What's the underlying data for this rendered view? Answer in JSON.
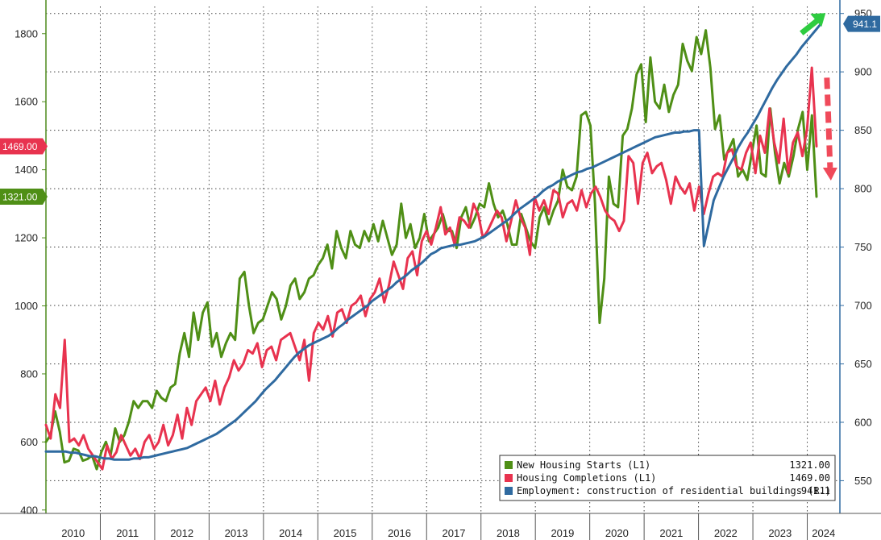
{
  "chart_data": {
    "type": "line",
    "x_start_year": 2010,
    "x_end_year": 2024.6,
    "x_tick_labels": [
      "2010",
      "2011",
      "2012",
      "2013",
      "2014",
      "2015",
      "2016",
      "2017",
      "2018",
      "2019",
      "2020",
      "2021",
      "2022",
      "2023",
      "2024"
    ],
    "left_axis": {
      "range": [
        390,
        1880
      ],
      "ticks": [
        "400",
        "600",
        "800",
        "1000",
        "1200",
        "1400",
        "1600",
        "1800"
      ],
      "color": "#4d8a1b"
    },
    "right_axis": {
      "range": [
        522,
        956
      ],
      "ticks": [
        "550",
        "600",
        "650",
        "700",
        "750",
        "800",
        "850",
        "900",
        "950"
      ],
      "color": "#2f6aa0"
    },
    "grid": true,
    "legend_placement": "bottom-right",
    "series": [
      {
        "name": "New Housing Starts (L1)",
        "axis": "left",
        "color": "#4f8f16",
        "last_value_label": "1321.00",
        "start": 2010.0,
        "values": [
          600,
          620,
          690,
          630,
          540,
          545,
          580,
          575,
          545,
          550,
          560,
          520,
          570,
          600,
          560,
          640,
          600,
          620,
          660,
          720,
          700,
          720,
          720,
          700,
          750,
          730,
          720,
          760,
          770,
          860,
          920,
          850,
          980,
          900,
          980,
          1010,
          880,
          920,
          850,
          890,
          920,
          900,
          1080,
          1100,
          1000,
          920,
          950,
          960,
          1000,
          1040,
          1020,
          960,
          1000,
          1060,
          1080,
          1020,
          1040,
          1080,
          1090,
          1120,
          1140,
          1180,
          1110,
          1220,
          1170,
          1140,
          1220,
          1180,
          1170,
          1220,
          1190,
          1240,
          1190,
          1250,
          1200,
          1150,
          1180,
          1300,
          1200,
          1240,
          1170,
          1200,
          1270,
          1190,
          1210,
          1230,
          1270,
          1220,
          1220,
          1170,
          1260,
          1290,
          1230,
          1260,
          1300,
          1290,
          1360,
          1300,
          1260,
          1280,
          1240,
          1180,
          1180,
          1270,
          1230,
          1190,
          1170,
          1260,
          1290,
          1240,
          1280,
          1310,
          1400,
          1350,
          1340,
          1380,
          1560,
          1570,
          1530,
          1300,
          950,
          1080,
          1380,
          1300,
          1290,
          1500,
          1520,
          1580,
          1680,
          1710,
          1540,
          1730,
          1600,
          1580,
          1650,
          1570,
          1620,
          1650,
          1770,
          1720,
          1690,
          1790,
          1740,
          1810,
          1700,
          1520,
          1560,
          1430,
          1460,
          1490,
          1380,
          1400,
          1370,
          1450,
          1530,
          1390,
          1380,
          1580,
          1450,
          1360,
          1420,
          1380,
          1440,
          1520,
          1570,
          1400,
          1560,
          1321
        ],
        "end": 2024.17
      },
      {
        "name": "Housing Completions (L1)",
        "axis": "left",
        "color": "#e8334f",
        "last_value_label": "1469.00",
        "start": 2010.0,
        "values": [
          650,
          610,
          740,
          700,
          900,
          600,
          610,
          590,
          620,
          580,
          560,
          540,
          520,
          590,
          550,
          570,
          620,
          590,
          560,
          580,
          550,
          600,
          620,
          580,
          600,
          650,
          590,
          620,
          680,
          610,
          700,
          650,
          720,
          740,
          760,
          720,
          780,
          710,
          760,
          790,
          840,
          810,
          830,
          870,
          860,
          890,
          820,
          870,
          880,
          840,
          900,
          910,
          920,
          880,
          840,
          900,
          780,
          920,
          950,
          930,
          970,
          910,
          980,
          990,
          950,
          1000,
          1010,
          1030,
          970,
          1020,
          1040,
          1080,
          1010,
          1060,
          1130,
          1090,
          1050,
          1140,
          1160,
          1090,
          1190,
          1220,
          1180,
          1230,
          1290,
          1210,
          1230,
          1180,
          1260,
          1250,
          1230,
          1300,
          1270,
          1200,
          1220,
          1250,
          1280,
          1260,
          1190,
          1250,
          1310,
          1260,
          1230,
          1150,
          1320,
          1280,
          1310,
          1270,
          1340,
          1330,
          1260,
          1300,
          1310,
          1280,
          1340,
          1290,
          1330,
          1350,
          1320,
          1280,
          1260,
          1250,
          1220,
          1250,
          1440,
          1420,
          1300,
          1420,
          1450,
          1390,
          1410,
          1420,
          1370,
          1300,
          1380,
          1350,
          1330,
          1360,
          1280,
          1350,
          1270,
          1330,
          1380,
          1390,
          1380,
          1450,
          1460,
          1410,
          1400,
          1450,
          1480,
          1390,
          1500,
          1450,
          1580,
          1480,
          1420,
          1550,
          1390,
          1480,
          1510,
          1440,
          1520,
          1700,
          1469
        ],
        "end": 2024.17
      },
      {
        "name": "Employment: construction of residential buildings (R1)",
        "axis": "right",
        "color": "#2f6aa0",
        "last_value_label": "941.1",
        "start": 2010.0,
        "values": [
          575,
          575,
          575,
          575,
          575,
          574,
          574,
          573,
          572,
          571,
          571,
          570,
          569,
          569,
          568,
          568,
          568,
          568,
          569,
          569,
          570,
          570,
          571,
          572,
          573,
          574,
          575,
          576,
          577,
          578,
          580,
          582,
          584,
          586,
          588,
          590,
          593,
          596,
          599,
          602,
          606,
          610,
          614,
          618,
          623,
          628,
          632,
          636,
          641,
          646,
          651,
          656,
          660,
          663,
          666,
          668,
          670,
          672,
          674,
          677,
          681,
          684,
          688,
          691,
          694,
          697,
          700,
          704,
          707,
          710,
          713,
          716,
          720,
          723,
          726,
          730,
          733,
          736,
          740,
          744,
          746,
          749,
          750,
          751,
          752,
          752,
          753,
          754,
          755,
          757,
          759,
          762,
          765,
          768,
          771,
          774,
          778,
          782,
          785,
          788,
          791,
          794,
          798,
          801,
          803,
          806,
          808,
          810,
          812,
          814,
          815,
          817,
          818,
          820,
          822,
          824,
          826,
          828,
          830,
          832,
          834,
          836,
          838,
          840,
          842,
          844,
          845,
          846,
          847,
          848,
          848,
          849,
          849,
          850,
          850,
          751,
          770,
          790,
          800,
          810,
          818,
          826,
          835,
          842,
          848,
          855,
          862,
          870,
          878,
          886,
          893,
          899,
          905,
          910,
          915,
          921,
          926,
          931,
          936,
          941.1
        ],
        "end": 2024.25
      }
    ],
    "tags": [
      {
        "text": "1469.00",
        "value": 1469,
        "axis": "left",
        "color": "#e8334f"
      },
      {
        "text": "1321.00",
        "value": 1321,
        "axis": "left",
        "color": "#4f8f16"
      },
      {
        "text": "941.1",
        "value": 941.1,
        "axis": "right",
        "color": "#2f6aa0"
      }
    ],
    "legend": [
      {
        "label": "New Housing Starts (L1)",
        "value": "1321.00",
        "color": "#4f8f16"
      },
      {
        "label": "Housing Completions (L1)",
        "value": "1469.00",
        "color": "#e8334f"
      },
      {
        "label": "Employment: construction of residential buildings (R1)",
        "value": "941.1",
        "color": "#2f6aa0"
      }
    ],
    "annotations": [
      {
        "type": "arrow-up",
        "color": "#2ecc40"
      },
      {
        "type": "dashed-arrow-down",
        "color": "#f04a5a"
      }
    ]
  }
}
